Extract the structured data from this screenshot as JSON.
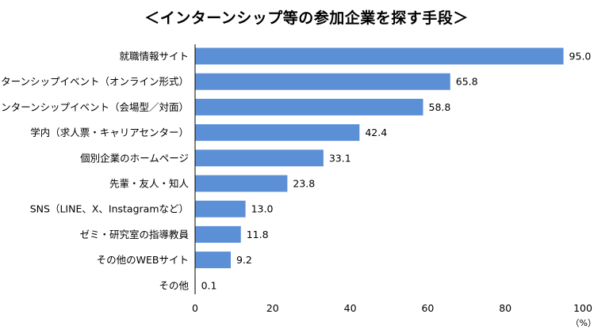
{
  "chart_data": {
    "type": "bar",
    "orientation": "horizontal",
    "title": "＜インターンシップ等の参加企業を探す手段＞",
    "categories": [
      "就職情報サイト",
      "インターンシップイベント（オンライン形式）",
      "インターンシップイベント（会場型／対面）",
      "学内（求人票・キャリアセンター）",
      "個別企業のホームページ",
      "先輩・友人・知人",
      "SNS（LINE、X、Instagramなど）",
      "ゼミ・研究室の指導教員",
      "その他のWEBサイト",
      "その他"
    ],
    "values": [
      95.0,
      65.8,
      58.8,
      42.4,
      33.1,
      23.8,
      13.0,
      11.8,
      9.2,
      0.1
    ],
    "value_labels": [
      "95.0",
      "65.8",
      "58.8",
      "42.4",
      "33.1",
      "23.8",
      "13.0",
      "11.8",
      "9.2",
      "0.1"
    ],
    "xlim": [
      0,
      100
    ],
    "xticks": [
      0,
      20,
      40,
      60,
      80,
      100
    ],
    "xtick_labels": [
      "0",
      "20",
      "40",
      "60",
      "80",
      "100"
    ],
    "unit": "（%）",
    "bar_color": "#5B8FD6",
    "grid": false,
    "legend": "none"
  }
}
